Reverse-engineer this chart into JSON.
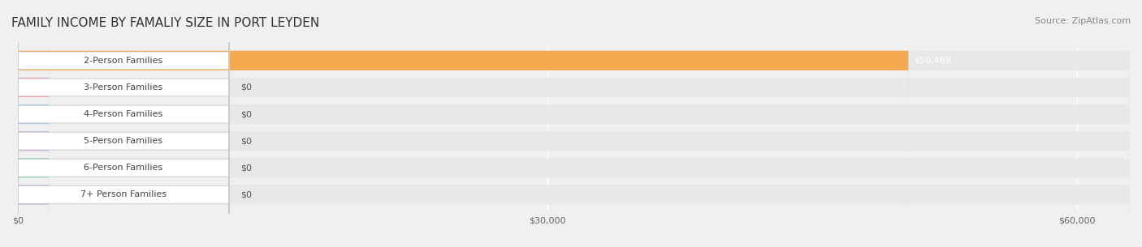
{
  "title": "FAMILY INCOME BY FAMALIY SIZE IN PORT LEYDEN",
  "source": "Source: ZipAtlas.com",
  "categories": [
    "2-Person Families",
    "3-Person Families",
    "4-Person Families",
    "5-Person Families",
    "6-Person Families",
    "7+ Person Families"
  ],
  "values": [
    50469,
    0,
    0,
    0,
    0,
    0
  ],
  "bar_colors": [
    "#f5a94e",
    "#f0a0a8",
    "#aec6e8",
    "#c9aed4",
    "#8ecdc8",
    "#b0b8e0"
  ],
  "label_colors": [
    "#f5a94e",
    "#f0a0a8",
    "#aec6e8",
    "#c9aed4",
    "#8ecdc8",
    "#b0b8e0"
  ],
  "value_labels": [
    "$50,469",
    "$0",
    "$0",
    "$0",
    "$0",
    "$0"
  ],
  "xlim": [
    0,
    63000
  ],
  "xticks": [
    0,
    30000,
    60000
  ],
  "xticklabels": [
    "$0",
    "$30,000",
    "$60,000"
  ],
  "background_color": "#f0f0f0",
  "bar_background_color": "#e8e8e8",
  "title_fontsize": 11,
  "source_fontsize": 8,
  "label_fontsize": 8,
  "value_fontsize": 8
}
